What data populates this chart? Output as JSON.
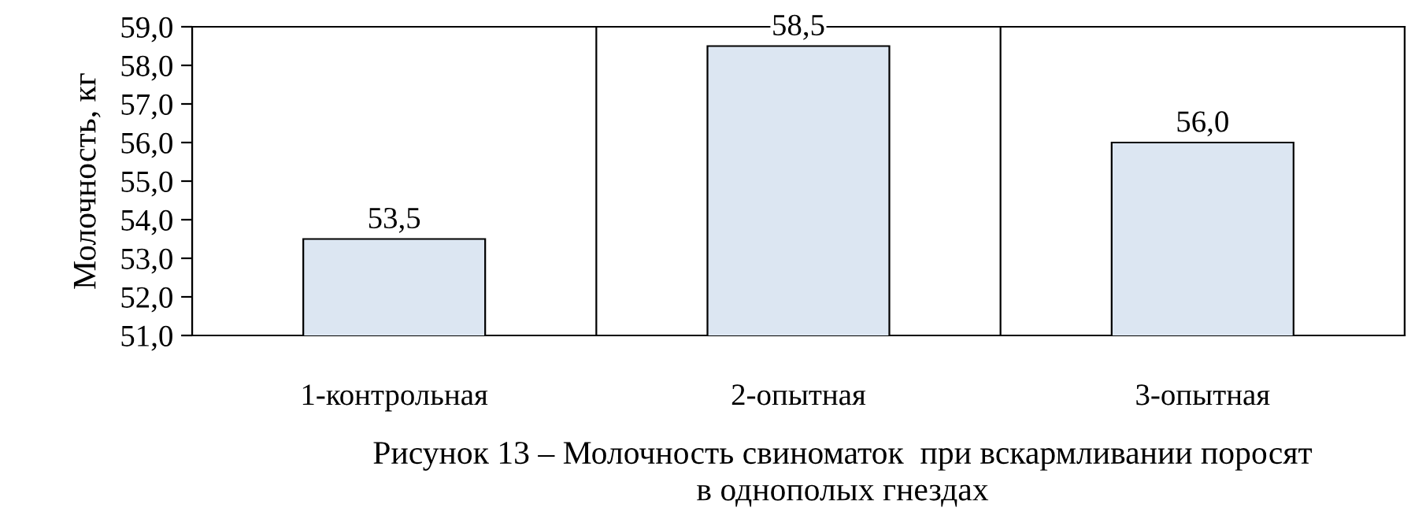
{
  "chart_data": {
    "type": "bar",
    "title": "Рисунок 13 – Молочность свиноматок  при вскармливании поросят\nв однополых гнездах",
    "ylabel": "Молочность, кг",
    "categories": [
      "1-контрольная",
      "2-опытная",
      "3-опытная"
    ],
    "values": [
      53.5,
      58.5,
      56.0
    ],
    "value_labels": [
      "53,5",
      "58,5",
      "56,0"
    ],
    "color": "#dce6f2",
    "ylim": [
      51,
      59
    ],
    "yticks": [
      {
        "value": 51,
        "label": "51,0"
      },
      {
        "value": 52,
        "label": "52,0"
      },
      {
        "value": 53,
        "label": "53,0"
      },
      {
        "value": 54,
        "label": "54,0"
      },
      {
        "value": 55,
        "label": "55,0"
      },
      {
        "value": 56,
        "label": "56,0"
      },
      {
        "value": 57,
        "label": "57,0"
      },
      {
        "value": 58,
        "label": "58,0"
      },
      {
        "value": 59,
        "label": "59,0"
      }
    ],
    "grid": "x"
  }
}
